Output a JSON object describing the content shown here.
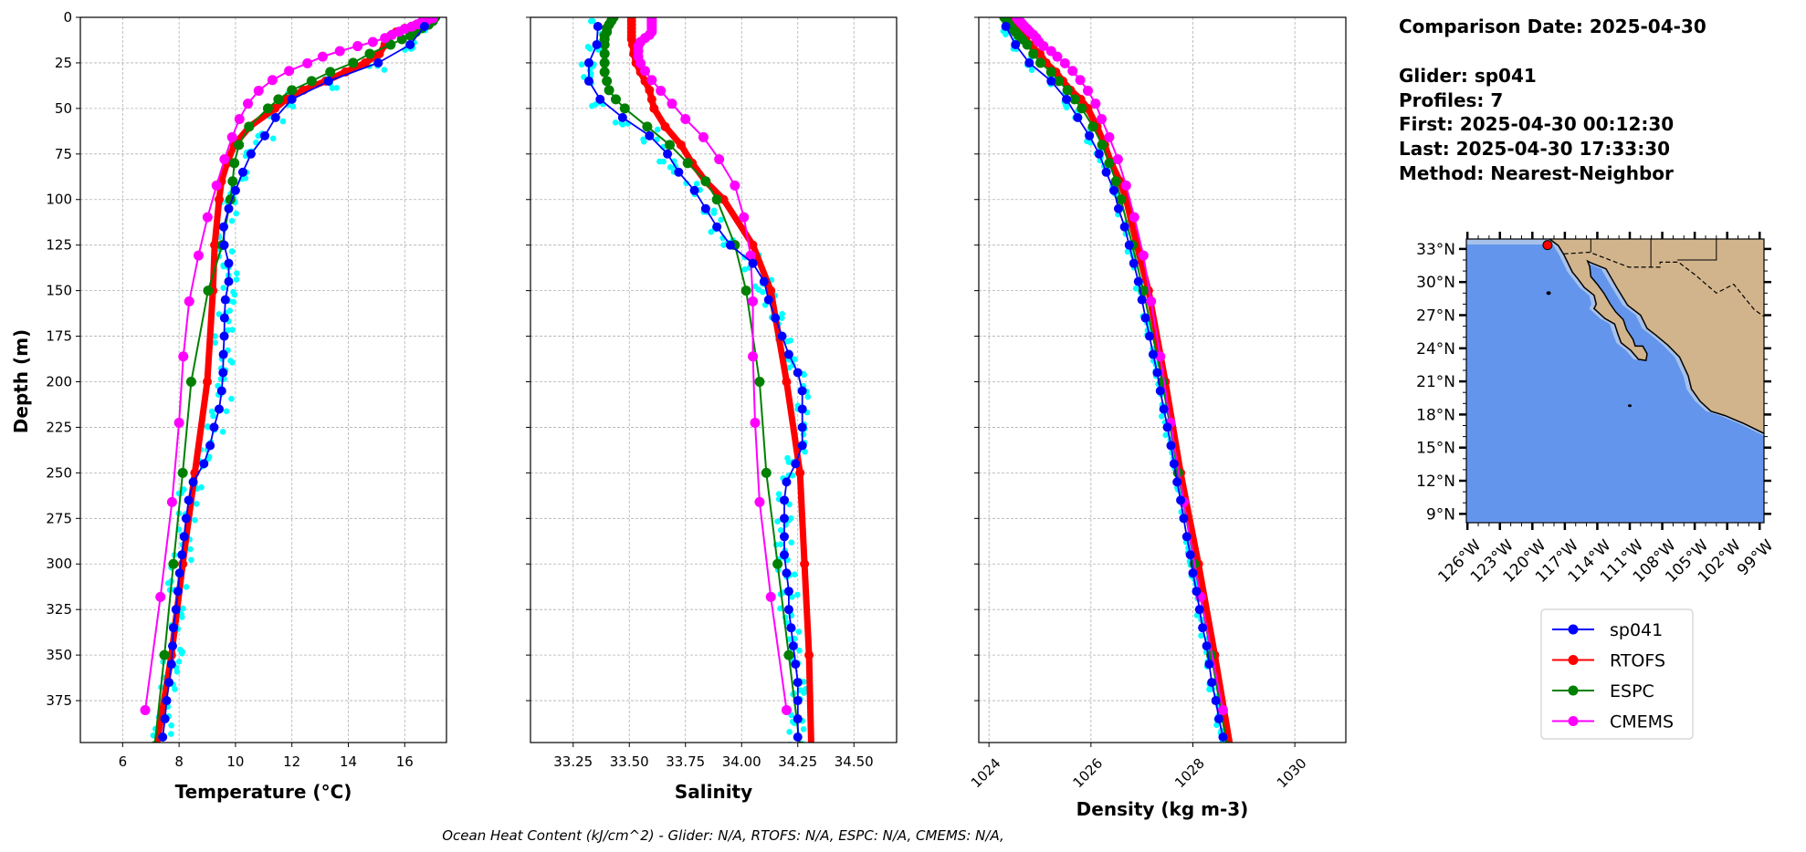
{
  "info": {
    "comparison_date": "Comparison Date: 2025-04-30",
    "glider": "Glider: sp041",
    "profiles": "Profiles: 7",
    "first": "First: 2025-04-30 00:12:30",
    "last": "Last: 2025-04-30 17:33:30",
    "method": "Method: Nearest-Neighbor"
  },
  "footer": "Ocean Heat Content (kJ/cm^2) - Glider: N/A,  RTOFS: N/A,  ESPC: N/A,  CMEMS: N/A,",
  "colors": {
    "sp041": "#0000ff",
    "profiles": "#00ffff",
    "RTOFS": "#ff0000",
    "ESPC": "#008000",
    "CMEMS": "#ff00ff"
  },
  "legend": [
    "sp041",
    "RTOFS",
    "ESPC",
    "CMEMS"
  ],
  "map": {
    "lat_labels": [
      "33°N",
      "30°N",
      "27°N",
      "24°N",
      "21°N",
      "18°N",
      "15°N",
      "12°N",
      "9°N"
    ],
    "lat_values": [
      33,
      30,
      27,
      24,
      21,
      18,
      15,
      12,
      9
    ],
    "lon_labels": [
      "126°W",
      "123°W",
      "120°W",
      "117°W",
      "114°W",
      "111°W",
      "108°W",
      "105°W",
      "102°W",
      "99°W"
    ],
    "lon_values": [
      -126,
      -123,
      -120,
      -117,
      -114,
      -111,
      -108,
      -105,
      -102,
      -99
    ],
    "extent": {
      "lon": [
        -126.1,
        -98.6
      ],
      "lat": [
        8.2,
        33.9
      ]
    },
    "glider_position": {
      "lon": -118.6,
      "lat": 33.35
    },
    "colors": {
      "ocean": "#6495ed",
      "shelf": "#a6c1ea",
      "land": "#d2b48c"
    }
  },
  "chart_data": [
    {
      "type": "line",
      "xlabel": "Temperature (°C)",
      "ylabel": "Depth (m)",
      "xlim": [
        4.5,
        17.48
      ],
      "ylim": [
        398,
        0
      ],
      "xticks": [
        6,
        8,
        10,
        12,
        14,
        16
      ],
      "xtick_labels": [
        "6",
        "8",
        "10",
        "12",
        "14",
        "16"
      ],
      "yticks": [
        0,
        25,
        50,
        75,
        100,
        125,
        150,
        175,
        200,
        225,
        250,
        275,
        300,
        325,
        350,
        375
      ],
      "ytick_labels": [
        "0",
        "25",
        "50",
        "75",
        "100",
        "125",
        "150",
        "175",
        "200",
        "225",
        "250",
        "275",
        "300",
        "325",
        "350",
        "375"
      ],
      "grid": true,
      "series": [
        {
          "name": "sp041",
          "depth": [
            5,
            15,
            25,
            35,
            45,
            55,
            65,
            75,
            85,
            95,
            105,
            115,
            125,
            135,
            145,
            155,
            165,
            175,
            185,
            195,
            205,
            215,
            225,
            235,
            245,
            255,
            265,
            275,
            285,
            295,
            305,
            315,
            325,
            335,
            345,
            355,
            365,
            375,
            385,
            395
          ],
          "values": [
            16.7,
            16.19,
            15.06,
            13.3,
            12.0,
            11.42,
            11.04,
            10.55,
            10.26,
            10.0,
            9.76,
            9.58,
            9.6,
            9.76,
            9.76,
            9.64,
            9.61,
            9.6,
            9.57,
            9.56,
            9.51,
            9.42,
            9.24,
            9.1,
            8.88,
            8.5,
            8.34,
            8.25,
            8.18,
            8.1,
            8.02,
            7.96,
            7.89,
            7.8,
            7.77,
            7.73,
            7.64,
            7.56,
            7.5,
            7.42
          ]
        },
        {
          "name": "RTOFS",
          "depth": [
            0,
            2,
            4,
            6,
            8,
            10,
            12,
            15,
            20,
            25,
            30,
            35,
            40,
            45,
            50,
            60,
            70,
            80,
            90,
            100,
            125,
            150,
            200,
            250,
            300,
            350,
            400
          ],
          "values": [
            17.0,
            16.8,
            16.4,
            16.0,
            15.7,
            15.5,
            15.4,
            15.3,
            15.1,
            14.6,
            13.9,
            13.2,
            12.4,
            11.8,
            11.4,
            10.5,
            9.96,
            9.7,
            9.5,
            9.42,
            9.26,
            9.2,
            9.0,
            8.56,
            8.13,
            7.73,
            7.2
          ]
        },
        {
          "name": "ESPC",
          "depth": [
            0,
            2,
            4,
            6,
            8,
            10,
            12,
            15,
            20,
            25,
            30,
            35,
            40,
            45,
            50,
            60,
            70,
            80,
            90,
            100,
            125,
            150,
            200,
            250,
            300,
            350,
            400
          ],
          "values": [
            17.08,
            17.0,
            16.85,
            16.6,
            16.4,
            16.2,
            15.9,
            15.5,
            14.76,
            14.17,
            13.36,
            12.7,
            12.0,
            11.52,
            11.15,
            10.48,
            10.12,
            9.96,
            9.9,
            9.82,
            9.53,
            9.03,
            8.43,
            8.13,
            7.8,
            7.48,
            7.13
          ]
        },
        {
          "name": "CMEMS",
          "depth": [
            0.5,
            1.5,
            2.6,
            3.8,
            5.1,
            6.4,
            7.9,
            9.6,
            11.4,
            13.5,
            15.8,
            18.5,
            21.6,
            25.2,
            29.4,
            34.4,
            40.3,
            47.4,
            55.8,
            65.8,
            77.9,
            92.3,
            109.7,
            130.7,
            155.9,
            186.1,
            222.5,
            266.0,
            318.1,
            380.2
          ],
          "values": [
            17.0,
            16.8,
            16.6,
            16.45,
            16.25,
            16.0,
            15.8,
            15.55,
            15.3,
            14.87,
            14.33,
            13.7,
            13.09,
            12.55,
            11.9,
            11.31,
            10.82,
            10.44,
            10.14,
            9.88,
            9.61,
            9.33,
            9.01,
            8.69,
            8.36,
            8.15,
            8.0,
            7.75,
            7.34,
            6.8
          ]
        }
      ]
    },
    {
      "type": "line",
      "xlabel": "Salinity",
      "ylabel": "",
      "xlim": [
        33.06,
        34.69
      ],
      "ylim": [
        398,
        0
      ],
      "xticks": [
        33.25,
        33.5,
        33.75,
        34.0,
        34.25,
        34.5
      ],
      "xtick_labels": [
        "33.25",
        "33.50",
        "33.75",
        "34.00",
        "34.25",
        "34.50"
      ],
      "yticks": [
        0,
        25,
        50,
        75,
        100,
        125,
        150,
        175,
        200,
        225,
        250,
        275,
        300,
        325,
        350,
        375
      ],
      "grid": true,
      "series": [
        {
          "name": "sp041",
          "depth": [
            5,
            15,
            25,
            35,
            45,
            55,
            65,
            75,
            85,
            95,
            105,
            115,
            125,
            135,
            145,
            155,
            165,
            175,
            185,
            195,
            205,
            215,
            225,
            235,
            245,
            255,
            265,
            275,
            285,
            295,
            305,
            315,
            325,
            335,
            345,
            355,
            365,
            375,
            385,
            395
          ],
          "values": [
            33.36,
            33.355,
            33.32,
            33.32,
            33.37,
            33.47,
            33.59,
            33.67,
            33.72,
            33.79,
            33.84,
            33.89,
            33.95,
            34.05,
            34.1,
            34.12,
            34.15,
            34.18,
            34.21,
            34.25,
            34.27,
            34.27,
            34.27,
            34.27,
            34.24,
            34.2,
            34.19,
            34.19,
            34.19,
            34.19,
            34.2,
            34.21,
            34.21,
            34.22,
            34.23,
            34.24,
            34.25,
            34.25,
            34.25,
            34.25
          ]
        },
        {
          "name": "RTOFS",
          "depth": [
            0,
            2,
            4,
            6,
            8,
            10,
            12,
            15,
            20,
            25,
            30,
            35,
            40,
            45,
            50,
            60,
            70,
            80,
            90,
            100,
            125,
            150,
            200,
            250,
            300,
            350,
            400
          ],
          "values": [
            33.51,
            33.51,
            33.51,
            33.51,
            33.51,
            33.51,
            33.51,
            33.515,
            33.52,
            33.53,
            33.55,
            33.57,
            33.59,
            33.6,
            33.61,
            33.66,
            33.73,
            33.78,
            33.84,
            33.92,
            34.05,
            34.13,
            34.2,
            34.26,
            34.28,
            34.3,
            34.31
          ]
        },
        {
          "name": "ESPC",
          "depth": [
            0,
            2,
            4,
            6,
            8,
            10,
            12,
            15,
            20,
            25,
            30,
            35,
            40,
            45,
            50,
            60,
            70,
            80,
            90,
            100,
            125,
            150,
            200,
            250,
            300,
            350,
            400
          ],
          "values": [
            33.43,
            33.42,
            33.41,
            33.4,
            33.4,
            33.39,
            33.39,
            33.39,
            33.39,
            33.39,
            33.39,
            33.4,
            33.41,
            33.44,
            33.48,
            33.58,
            33.68,
            33.76,
            33.84,
            33.89,
            33.97,
            34.02,
            34.08,
            34.11,
            34.16,
            34.21,
            34.26
          ]
        },
        {
          "name": "CMEMS",
          "depth": [
            0.5,
            1.5,
            2.6,
            3.8,
            5.1,
            6.4,
            7.9,
            9.6,
            11.4,
            13.5,
            15.8,
            18.5,
            21.6,
            25.2,
            29.4,
            34.4,
            40.3,
            47.4,
            55.8,
            65.8,
            77.9,
            92.3,
            109.7,
            130.7,
            155.9,
            186.1,
            222.5,
            266.0,
            318.1,
            380.2
          ],
          "values": [
            33.6,
            33.6,
            33.6,
            33.6,
            33.6,
            33.6,
            33.6,
            33.59,
            33.57,
            33.55,
            33.54,
            33.54,
            33.54,
            33.55,
            33.57,
            33.6,
            33.64,
            33.69,
            33.75,
            33.83,
            33.9,
            33.97,
            34.01,
            34.04,
            34.05,
            34.05,
            34.06,
            34.08,
            34.13,
            34.2
          ]
        }
      ]
    },
    {
      "type": "line",
      "xlabel": "Density (kg m-3)",
      "ylabel": "",
      "xlim": [
        1023.8,
        1031.0
      ],
      "ylim": [
        398,
        0
      ],
      "xticks": [
        1024,
        1026,
        1028,
        1030
      ],
      "xtick_labels": [
        "1024",
        "1026",
        "1028",
        "1030"
      ],
      "yticks": [
        0,
        25,
        50,
        75,
        100,
        125,
        150,
        175,
        200,
        225,
        250,
        275,
        300,
        325,
        350,
        375
      ],
      "grid": true,
      "series": [
        {
          "name": "sp041",
          "depth": [
            5,
            15,
            25,
            35,
            45,
            55,
            65,
            75,
            85,
            95,
            105,
            115,
            125,
            135,
            145,
            155,
            165,
            175,
            185,
            195,
            205,
            215,
            225,
            235,
            245,
            255,
            265,
            275,
            285,
            295,
            305,
            315,
            325,
            335,
            345,
            355,
            365,
            375,
            385,
            395
          ],
          "values": [
            1024.33,
            1024.52,
            1024.79,
            1025.22,
            1025.52,
            1025.74,
            1025.97,
            1026.16,
            1026.3,
            1026.45,
            1026.54,
            1026.66,
            1026.75,
            1026.84,
            1026.93,
            1027.0,
            1027.07,
            1027.15,
            1027.22,
            1027.3,
            1027.36,
            1027.43,
            1027.5,
            1027.57,
            1027.63,
            1027.69,
            1027.76,
            1027.82,
            1027.88,
            1027.95,
            1028.0,
            1028.07,
            1028.13,
            1028.19,
            1028.27,
            1028.32,
            1028.37,
            1028.45,
            1028.51,
            1028.59
          ]
        },
        {
          "name": "RTOFS",
          "depth": [
            0,
            2,
            4,
            6,
            8,
            10,
            12,
            15,
            20,
            25,
            30,
            35,
            40,
            45,
            50,
            60,
            70,
            80,
            90,
            100,
            125,
            150,
            200,
            250,
            300,
            350,
            400
          ],
          "values": [
            1024.35,
            1024.4,
            1024.47,
            1024.55,
            1024.62,
            1024.67,
            1024.72,
            1024.8,
            1025.0,
            1025.12,
            1025.31,
            1025.45,
            1025.6,
            1025.8,
            1025.94,
            1026.12,
            1026.27,
            1026.4,
            1026.57,
            1026.69,
            1026.9,
            1027.13,
            1027.46,
            1027.76,
            1028.11,
            1028.43,
            1028.73
          ]
        },
        {
          "name": "ESPC",
          "depth": [
            0,
            2,
            4,
            6,
            8,
            10,
            12,
            15,
            20,
            25,
            30,
            35,
            40,
            45,
            50,
            60,
            70,
            80,
            90,
            100,
            125,
            150,
            200,
            250,
            300,
            350,
            400
          ],
          "values": [
            1024.3,
            1024.35,
            1024.4,
            1024.45,
            1024.52,
            1024.58,
            1024.65,
            1024.75,
            1024.87,
            1025.01,
            1025.22,
            1025.37,
            1025.54,
            1025.68,
            1025.82,
            1026.04,
            1026.22,
            1026.36,
            1026.49,
            1026.59,
            1026.81,
            1027.03,
            1027.4,
            1027.71,
            1028.03,
            1028.36,
            1028.67
          ]
        },
        {
          "name": "CMEMS",
          "depth": [
            0.5,
            1.5,
            2.6,
            3.8,
            5.1,
            6.4,
            7.9,
            9.6,
            11.4,
            13.5,
            15.8,
            18.5,
            21.6,
            25.2,
            29.4,
            34.4,
            40.3,
            47.4,
            55.8,
            65.8,
            77.9,
            92.3,
            109.7,
            130.7,
            155.9,
            186.1,
            222.5,
            266.0,
            318.1,
            380.2
          ],
          "values": [
            1024.55,
            1024.58,
            1024.62,
            1024.66,
            1024.7,
            1024.75,
            1024.8,
            1024.87,
            1024.93,
            1024.98,
            1025.07,
            1025.22,
            1025.34,
            1025.49,
            1025.64,
            1025.79,
            1025.94,
            1026.09,
            1026.21,
            1026.36,
            1026.53,
            1026.69,
            1026.85,
            1027.03,
            1027.18,
            1027.36,
            1027.56,
            1027.82,
            1028.15,
            1028.59
          ]
        }
      ]
    }
  ]
}
